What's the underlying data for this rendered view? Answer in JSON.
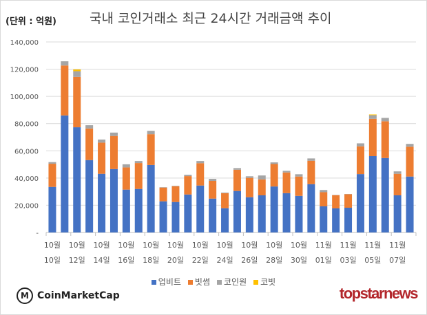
{
  "header": {
    "unit": "(단위 : 억원)",
    "title": "국내 코인거래소 최근 24시간 거래금액 추이"
  },
  "logos": {
    "left": "CoinMarketCap",
    "right": "topstarnews"
  },
  "chart_data": {
    "type": "bar",
    "stacked": true,
    "title": "국내 코인거래소 최근 24시간 거래금액 추이",
    "ylabel": "(단위 : 억원)",
    "ylim": [
      0,
      140000
    ],
    "yticks": [
      "-",
      "20,000",
      "40,000",
      "60,000",
      "80,000",
      "100,000",
      "120,000",
      "140,000"
    ],
    "grid": true,
    "legend": "bottom",
    "tick_labels": [
      [
        "10월",
        "10일"
      ],
      [
        "10월",
        "12일"
      ],
      [
        "10월",
        "14일"
      ],
      [
        "10월",
        "16일"
      ],
      [
        "10월",
        "18일"
      ],
      [
        "10월",
        "20일"
      ],
      [
        "10월",
        "22일"
      ],
      [
        "10월",
        "24일"
      ],
      [
        "10월",
        "26일"
      ],
      [
        "10월",
        "28일"
      ],
      [
        "10월",
        "30일"
      ],
      [
        "11월",
        "01일"
      ],
      [
        "11월",
        "03일"
      ],
      [
        "11월",
        "05일"
      ],
      [
        "11월",
        "07일"
      ]
    ],
    "series": [
      {
        "name": "업비트",
        "color": "#4472C4",
        "values": [
          33500,
          86000,
          77300,
          53200,
          43100,
          46600,
          31500,
          32000,
          49600,
          22900,
          22400,
          27900,
          34500,
          24900,
          17800,
          30500,
          25900,
          27300,
          33800,
          28900,
          26900,
          35500,
          19200,
          17700,
          18200,
          42900,
          56100,
          54700,
          27300,
          41100
        ]
      },
      {
        "name": "빗썸",
        "color": "#ED7D31",
        "values": [
          17000,
          36700,
          37000,
          23200,
          22900,
          24300,
          16300,
          19000,
          22600,
          10100,
          11600,
          13500,
          16400,
          13000,
          11000,
          15600,
          14200,
          11700,
          16500,
          15200,
          14200,
          17200,
          10400,
          9700,
          9900,
          20400,
          27400,
          27000,
          15800,
          21900
        ]
      },
      {
        "name": "코인원",
        "color": "#A5A5A5",
        "values": [
          1200,
          3100,
          4200,
          2400,
          2300,
          2500,
          2300,
          1500,
          2500,
          300,
          300,
          1000,
          1600,
          1500,
          500,
          1200,
          1200,
          2900,
          1200,
          1200,
          1700,
          1700,
          1600,
          200,
          200,
          2200,
          2700,
          2500,
          1800,
          2100
        ]
      },
      {
        "name": "코빗",
        "color": "#FFC000",
        "values": [
          0,
          0,
          1300,
          0,
          0,
          0,
          0,
          0,
          0,
          0,
          0,
          0,
          0,
          0,
          0,
          0,
          0,
          0,
          0,
          0,
          0,
          0,
          0,
          0,
          0,
          0,
          500,
          0,
          0,
          0
        ]
      }
    ]
  }
}
